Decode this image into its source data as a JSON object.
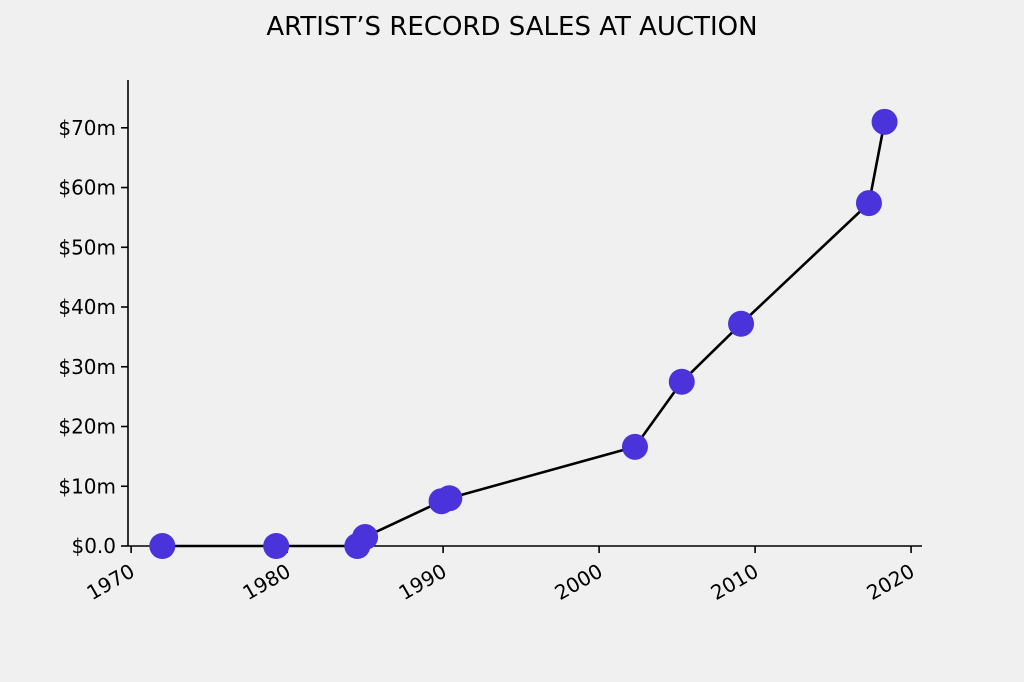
{
  "chart_data": {
    "type": "line",
    "title": "ARTIST’S RECORD SALES AT AUCTION",
    "xlabel": "",
    "ylabel": "",
    "xlim": [
      1969.8,
      2020.7
    ],
    "ylim": [
      0,
      78
    ],
    "x_ticks": [
      {
        "value": 1970,
        "label": "1970"
      },
      {
        "value": 1980,
        "label": "1980"
      },
      {
        "value": 1990,
        "label": "1990"
      },
      {
        "value": 2000,
        "label": "2000"
      },
      {
        "value": 2010,
        "label": "2010"
      },
      {
        "value": 2020,
        "label": "2020"
      }
    ],
    "y_ticks": [
      {
        "value": 0,
        "label": "$0.0"
      },
      {
        "value": 10,
        "label": "$10m"
      },
      {
        "value": 20,
        "label": "$20m"
      },
      {
        "value": 30,
        "label": "$30m"
      },
      {
        "value": 40,
        "label": "$40m"
      },
      {
        "value": 50,
        "label": "$50m"
      },
      {
        "value": 60,
        "label": "$60m"
      },
      {
        "value": 70,
        "label": "$70m"
      }
    ],
    "grid": false,
    "legend": "none",
    "series": [
      {
        "color": "#4a33db",
        "line_color": "#000000",
        "points": [
          {
            "x": 1972.0,
            "y": 0.0
          },
          {
            "x": 1979.3,
            "y": 0.0
          },
          {
            "x": 1984.5,
            "y": 0.0
          },
          {
            "x": 1985.0,
            "y": 1.5
          },
          {
            "x": 1989.9,
            "y": 7.5
          },
          {
            "x": 1990.4,
            "y": 8.0
          },
          {
            "x": 2002.3,
            "y": 16.6
          },
          {
            "x": 2005.3,
            "y": 27.5
          },
          {
            "x": 2009.1,
            "y": 37.2
          },
          {
            "x": 2017.3,
            "y": 57.4
          },
          {
            "x": 2018.3,
            "y": 71.0
          }
        ]
      }
    ]
  }
}
